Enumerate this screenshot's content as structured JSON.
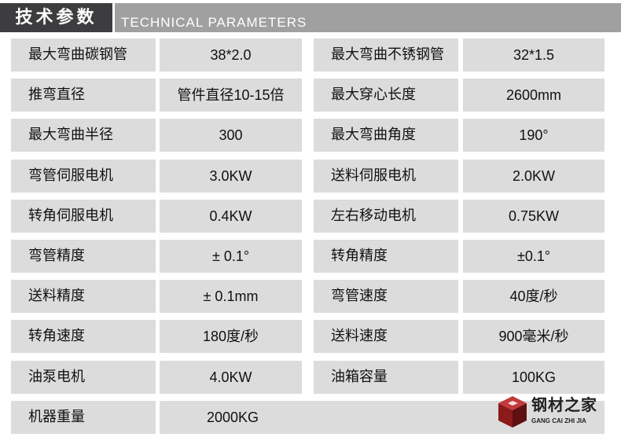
{
  "header": {
    "title_cn": "技术参数",
    "title_en": "TECHNICAL PARAMETERS"
  },
  "rows": [
    {
      "l1": "最大弯曲碳钢管",
      "v1": "38*2.0",
      "l2": "最大弯曲不锈钢管",
      "v2": "32*1.5"
    },
    {
      "l1": "推弯直径",
      "v1": "管件直径10-15倍",
      "l2": "最大穿心长度",
      "v2": "2600mm"
    },
    {
      "l1": "最大弯曲半径",
      "v1": "300",
      "l2": "最大弯曲角度",
      "v2": "190°"
    },
    {
      "l1": "弯管伺服电机",
      "v1": "3.0KW",
      "l2": "送料伺服电机",
      "v2": "2.0KW"
    },
    {
      "l1": "转角伺服电机",
      "v1": "0.4KW",
      "l2": "左右移动电机",
      "v2": "0.75KW"
    },
    {
      "l1": "弯管精度",
      "v1": "± 0.1°",
      "l2": "转角精度",
      "v2": "±0.1°"
    },
    {
      "l1": "送料精度",
      "v1": "± 0.1mm",
      "l2": "弯管速度",
      "v2": "40度/秒"
    },
    {
      "l1": "转角速度",
      "v1": "180度/秒",
      "l2": "送料速度",
      "v2": "900毫米/秒"
    },
    {
      "l1": "油泵电机",
      "v1": "4.0KW",
      "l2": "油箱容量",
      "v2": "100KG"
    },
    {
      "l1": "机器重量",
      "v1": "2000KG"
    }
  ],
  "logo": {
    "cn": "钢材之家",
    "en": "GANG CAI ZHI JIA",
    "color": "#8b1a1a"
  }
}
